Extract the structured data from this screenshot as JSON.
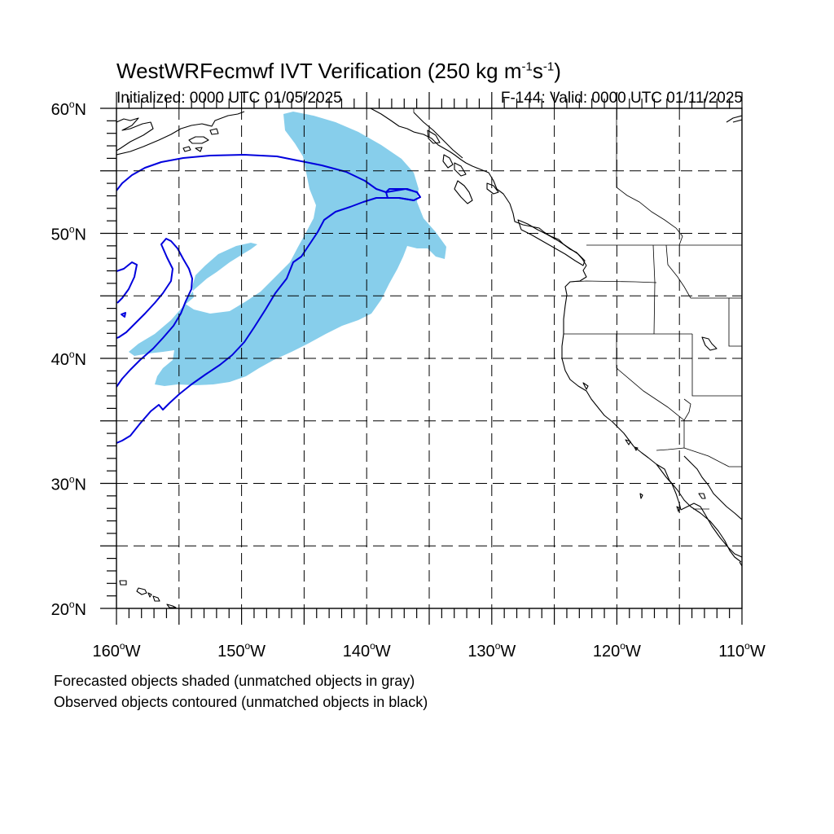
{
  "header": {
    "title_main": "WestWRFecmwf IVT Verification (250 kg m",
    "title_exp1": "-1",
    "title_mid": "s",
    "title_exp2": "-1",
    "title_end": ")",
    "initialized": "Initialized: 0000 UTC 01/05/2025",
    "valid": "F-144: Valid: 0000 UTC 01/11/2025"
  },
  "legend_notes": {
    "line1": "Forecasted objects shaded (unmatched objects in gray)",
    "line2": "Observed objects contoured (unmatched objects in black)"
  },
  "map": {
    "lon_range": [
      -160,
      -110
    ],
    "lat_range": [
      20,
      60
    ],
    "lat_labels": [
      {
        "value": 60,
        "text": "60",
        "hemi": "N"
      },
      {
        "value": 50,
        "text": "50",
        "hemi": "N"
      },
      {
        "value": 40,
        "text": "40",
        "hemi": "N"
      },
      {
        "value": 30,
        "text": "30",
        "hemi": "N"
      },
      {
        "value": 20,
        "text": "20",
        "hemi": "N"
      }
    ],
    "lon_labels": [
      {
        "value": -160,
        "text": "160",
        "hemi": "W"
      },
      {
        "value": -150,
        "text": "150",
        "hemi": "W"
      },
      {
        "value": -140,
        "text": "140",
        "hemi": "W"
      },
      {
        "value": -130,
        "text": "130",
        "hemi": "W"
      },
      {
        "value": -120,
        "text": "120",
        "hemi": "W"
      },
      {
        "value": -110,
        "text": "110",
        "hemi": "W"
      }
    ],
    "grid_lons": [
      -155,
      -150,
      -145,
      -140,
      -135,
      -130,
      -125,
      -120,
      -115
    ],
    "grid_lats": [
      25,
      30,
      35,
      40,
      45,
      50,
      55
    ],
    "colors": {
      "forecast_fill": "#87ceeb",
      "observed_contour": "#0000dd",
      "coastline": "#000000",
      "grid": "#000000"
    }
  }
}
